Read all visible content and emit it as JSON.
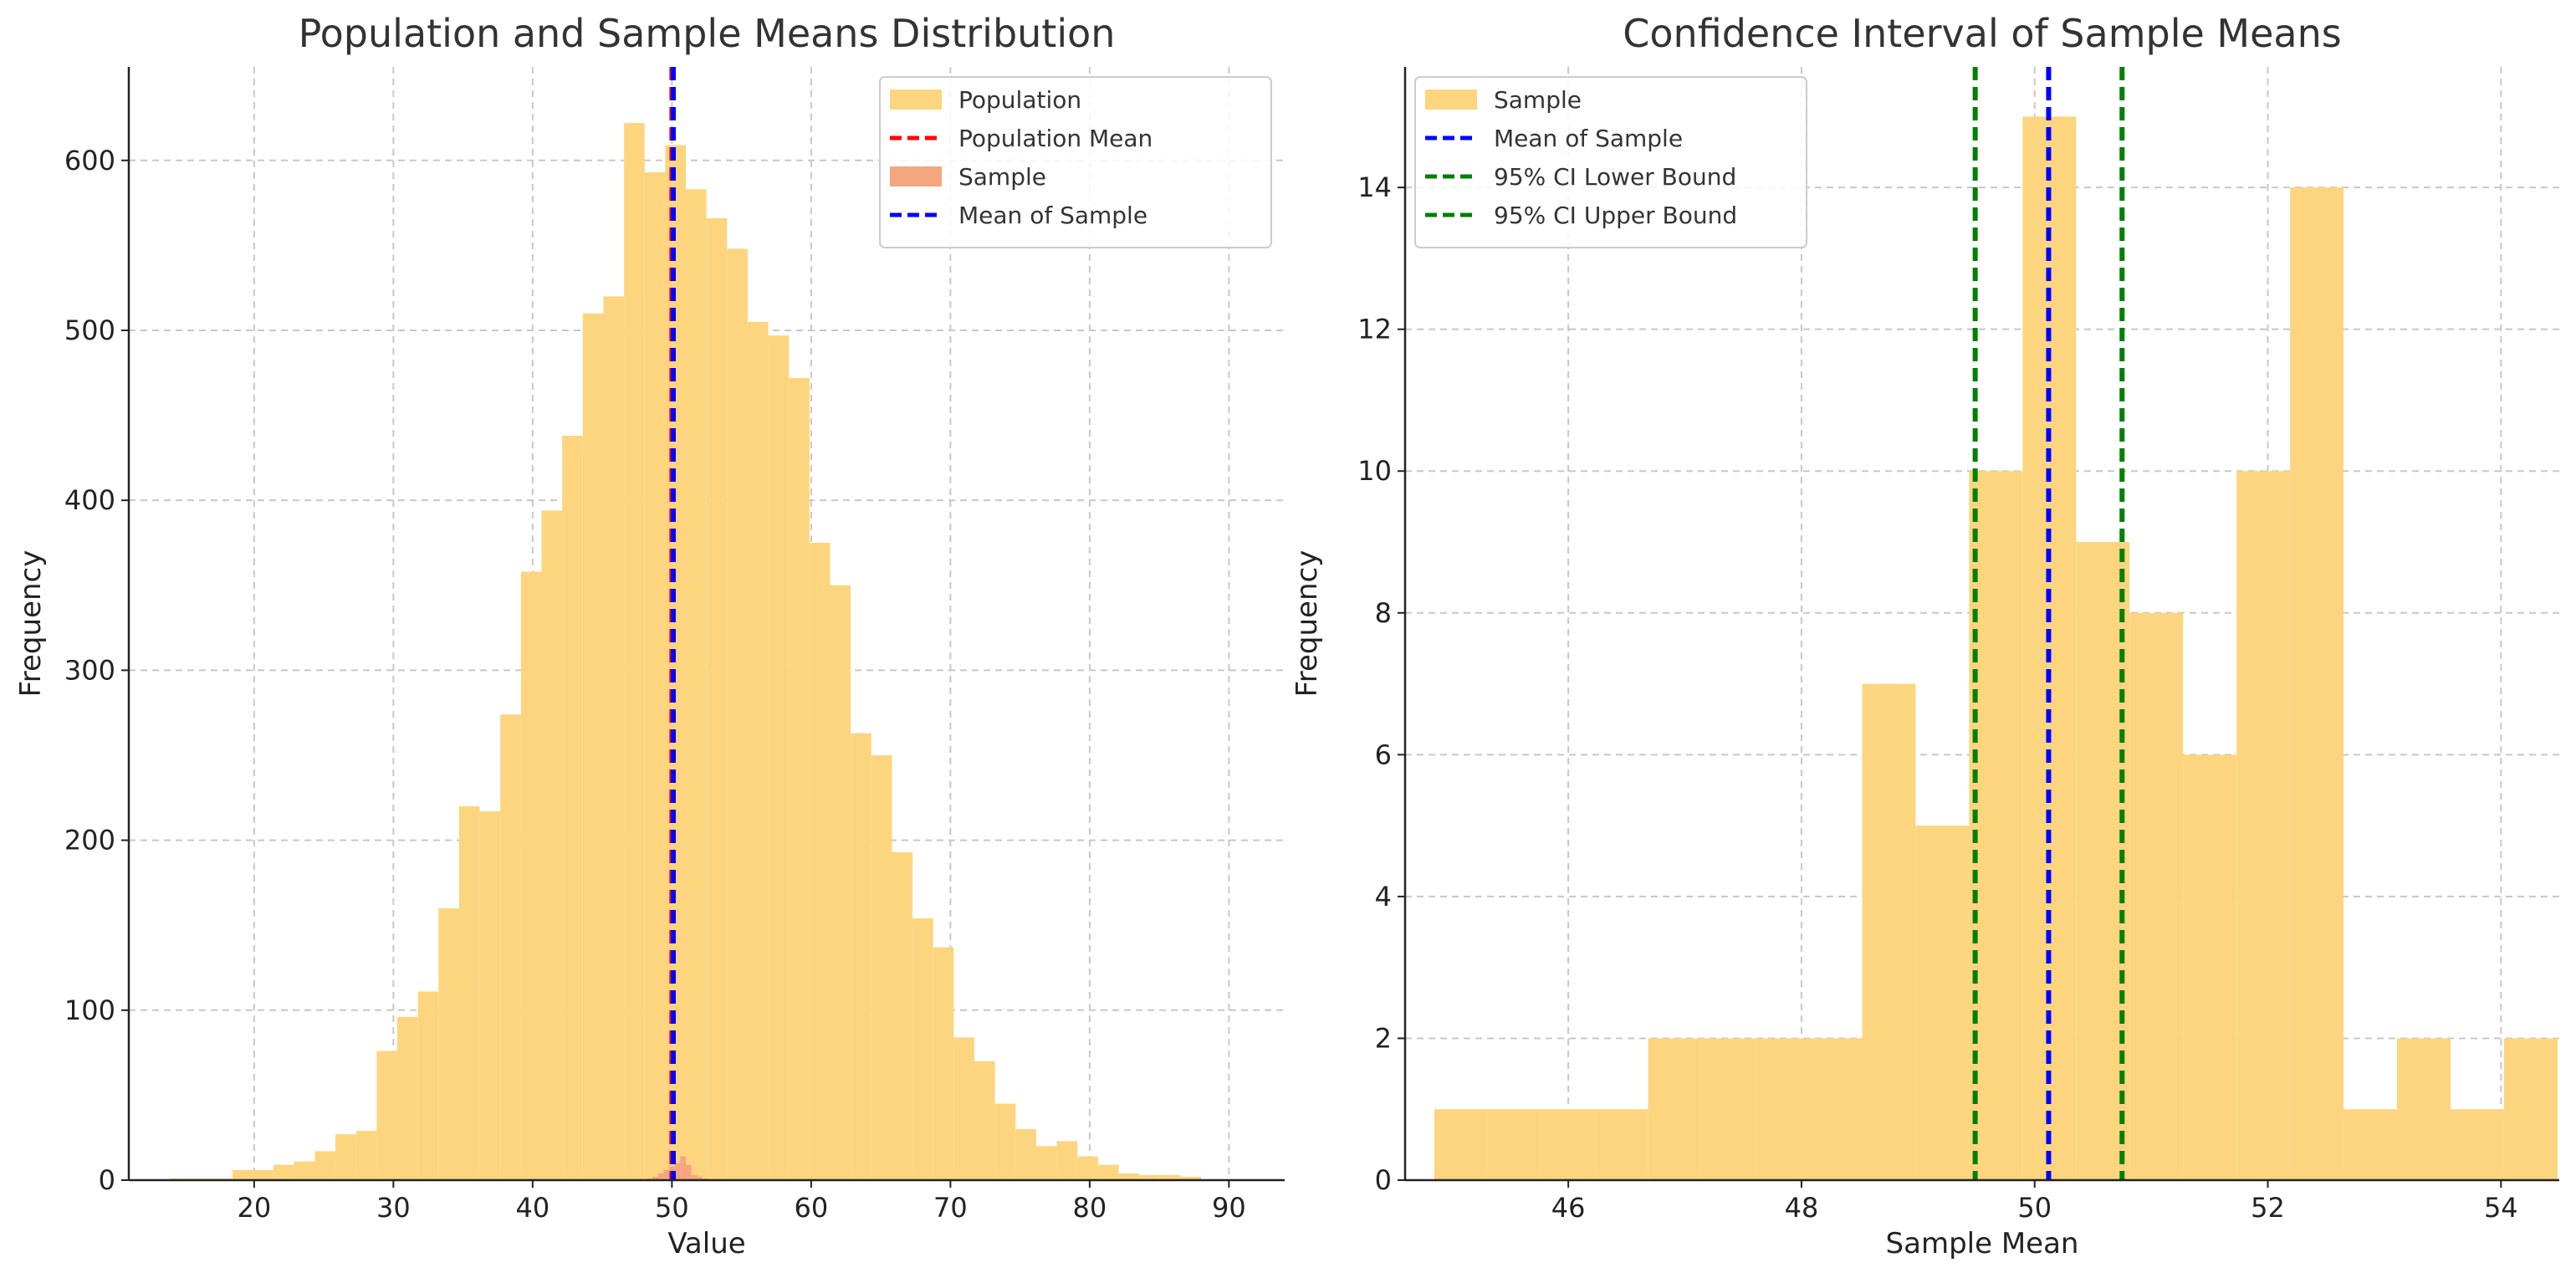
{
  "chart_data": [
    {
      "type": "bar",
      "subtype": "histogram",
      "title": "Population and Sample Means Distribution",
      "xlabel": "Value",
      "ylabel": "Frequency",
      "xlim": [
        11,
        94
      ],
      "ylim": [
        0,
        655
      ],
      "xticks": [
        20,
        30,
        40,
        50,
        60,
        70,
        80,
        90
      ],
      "yticks": [
        0,
        100,
        200,
        300,
        400,
        500,
        600
      ],
      "grid": true,
      "legend_position": "top-right",
      "series": [
        {
          "name": "Population",
          "kind": "histogram",
          "color": "#fdd57f",
          "bin_start": 14,
          "bin_width": 1.48,
          "values": [
            1,
            1,
            1,
            6,
            6,
            9,
            11,
            17,
            27,
            29,
            76,
            96,
            111,
            160,
            220,
            217,
            274,
            358,
            394,
            438,
            510,
            520,
            622,
            593,
            609,
            583,
            566,
            548,
            505,
            497,
            472,
            375,
            350,
            263,
            250,
            193,
            154,
            137,
            84,
            70,
            45,
            30,
            20,
            23,
            14,
            9,
            4,
            3,
            3,
            2
          ]
        },
        {
          "name": "Sample",
          "kind": "histogram",
          "color": "#f4a77f",
          "bin_start": 48.2,
          "bin_width": 0.4,
          "values": [
            1,
            2,
            4,
            6,
            8,
            10,
            14,
            9,
            3,
            2,
            1
          ]
        },
        {
          "name": "Population Mean",
          "kind": "vline",
          "x": 50.0,
          "color": "#ff0000"
        },
        {
          "name": "Mean of Sample",
          "kind": "vline",
          "x": 50.1,
          "color": "#0000ff"
        }
      ],
      "legend": [
        "Population",
        "Population Mean",
        "Sample",
        "Mean of Sample"
      ]
    },
    {
      "type": "bar",
      "subtype": "histogram",
      "title": "Confidence Interval of Sample Means",
      "xlabel": "Sample Mean",
      "ylabel": "Frequency",
      "xlim": [
        44.6,
        54.5
      ],
      "ylim": [
        0,
        15.7
      ],
      "xticks": [
        46,
        48,
        50,
        52,
        54
      ],
      "yticks": [
        0,
        2,
        4,
        6,
        8,
        10,
        12,
        14
      ],
      "grid": true,
      "legend_position": "top-left",
      "series": [
        {
          "name": "Sample",
          "kind": "histogram",
          "color": "#fdd57f",
          "bin_start": 44.85,
          "bin_width": 0.4588,
          "values": [
            1,
            1,
            1,
            1,
            2,
            2,
            2,
            2,
            7,
            5,
            10,
            15,
            9,
            8,
            6,
            10,
            14,
            1,
            2,
            1,
            2
          ]
        },
        {
          "name": "Mean of Sample",
          "kind": "vline",
          "x": 50.12,
          "color": "#0000ff"
        },
        {
          "name": "95% CI Lower Bound",
          "kind": "vline",
          "x": 49.49,
          "color": "#008000"
        },
        {
          "name": "95% CI Upper Bound",
          "kind": "vline",
          "x": 50.75,
          "color": "#008000"
        }
      ],
      "legend": [
        "Sample",
        "Mean of Sample",
        "95% CI Lower Bound",
        "95% CI Upper Bound"
      ]
    }
  ]
}
